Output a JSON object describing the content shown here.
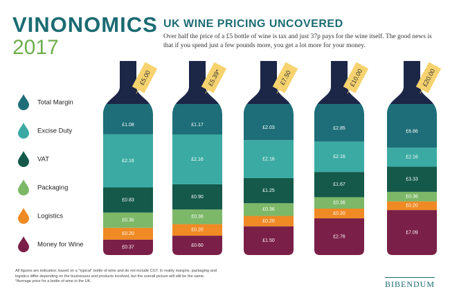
{
  "brand": "VINONOMICS",
  "year": "2017",
  "footnote": "All figures are indicative; based on a \"typical\" bottle of wine and do not include CGT. In reality margins, packaging and logistics differ depending on the businesses and products involved, but the overall picture will still be the same.",
  "footnote_2": "*Average price for a bottle of wine in the UK.",
  "logo": "BIBENDUM",
  "chart_data": {
    "type": "bar",
    "stacked": true,
    "title": "UK WINE PRICING UNCOVERED",
    "subtitle": "Over half the price of a £5 bottle of wine is tax and just 37p pays for the wine itself. The good news is that if you spend just a few pounds more, you get a lot more for your money.",
    "categories": [
      "£5.00",
      "£5.39*",
      "£7.50",
      "£10.00",
      "£20.00"
    ],
    "series": [
      {
        "name": "Total Margin",
        "color": "#1d6e78",
        "values": [
          1.08,
          1.17,
          2.03,
          2.85,
          6.86
        ],
        "value_labels": [
          "£1.08",
          "£1.17",
          "£2.03",
          "£2.85",
          "£6.86"
        ]
      },
      {
        "name": "Excise Duty",
        "color": "#3aaaa3",
        "values": [
          2.16,
          2.16,
          2.16,
          2.16,
          2.16
        ],
        "value_labels": [
          "£2.16",
          "£2.16",
          "£2.16",
          "£2.16",
          "£2.16"
        ]
      },
      {
        "name": "VAT",
        "color": "#14594a",
        "values": [
          0.83,
          0.9,
          1.25,
          1.67,
          3.33
        ],
        "value_labels": [
          "£0.83",
          "£0.90",
          "£1.25",
          "£1.67",
          "£3.33"
        ]
      },
      {
        "name": "Packaging",
        "color": "#7db868",
        "values": [
          0.36,
          0.36,
          0.36,
          0.36,
          0.36
        ],
        "value_labels": [
          "£0.36",
          "£0.36",
          "£0.36",
          "£0.36",
          "£0.36"
        ]
      },
      {
        "name": "Logistics",
        "color": "#ef8a24",
        "values": [
          0.2,
          0.2,
          0.2,
          0.2,
          0.2
        ],
        "value_labels": [
          "£0.20",
          "£0.20",
          "£0.20",
          "£0.20",
          "£0.20"
        ]
      },
      {
        "name": "Money for Wine",
        "color": "#7a1f47",
        "values": [
          0.37,
          0.6,
          1.5,
          2.76,
          7.09
        ],
        "value_labels": [
          "£0.37",
          "£0.60",
          "£1.50",
          "£2.76",
          "£7.09"
        ]
      }
    ]
  }
}
